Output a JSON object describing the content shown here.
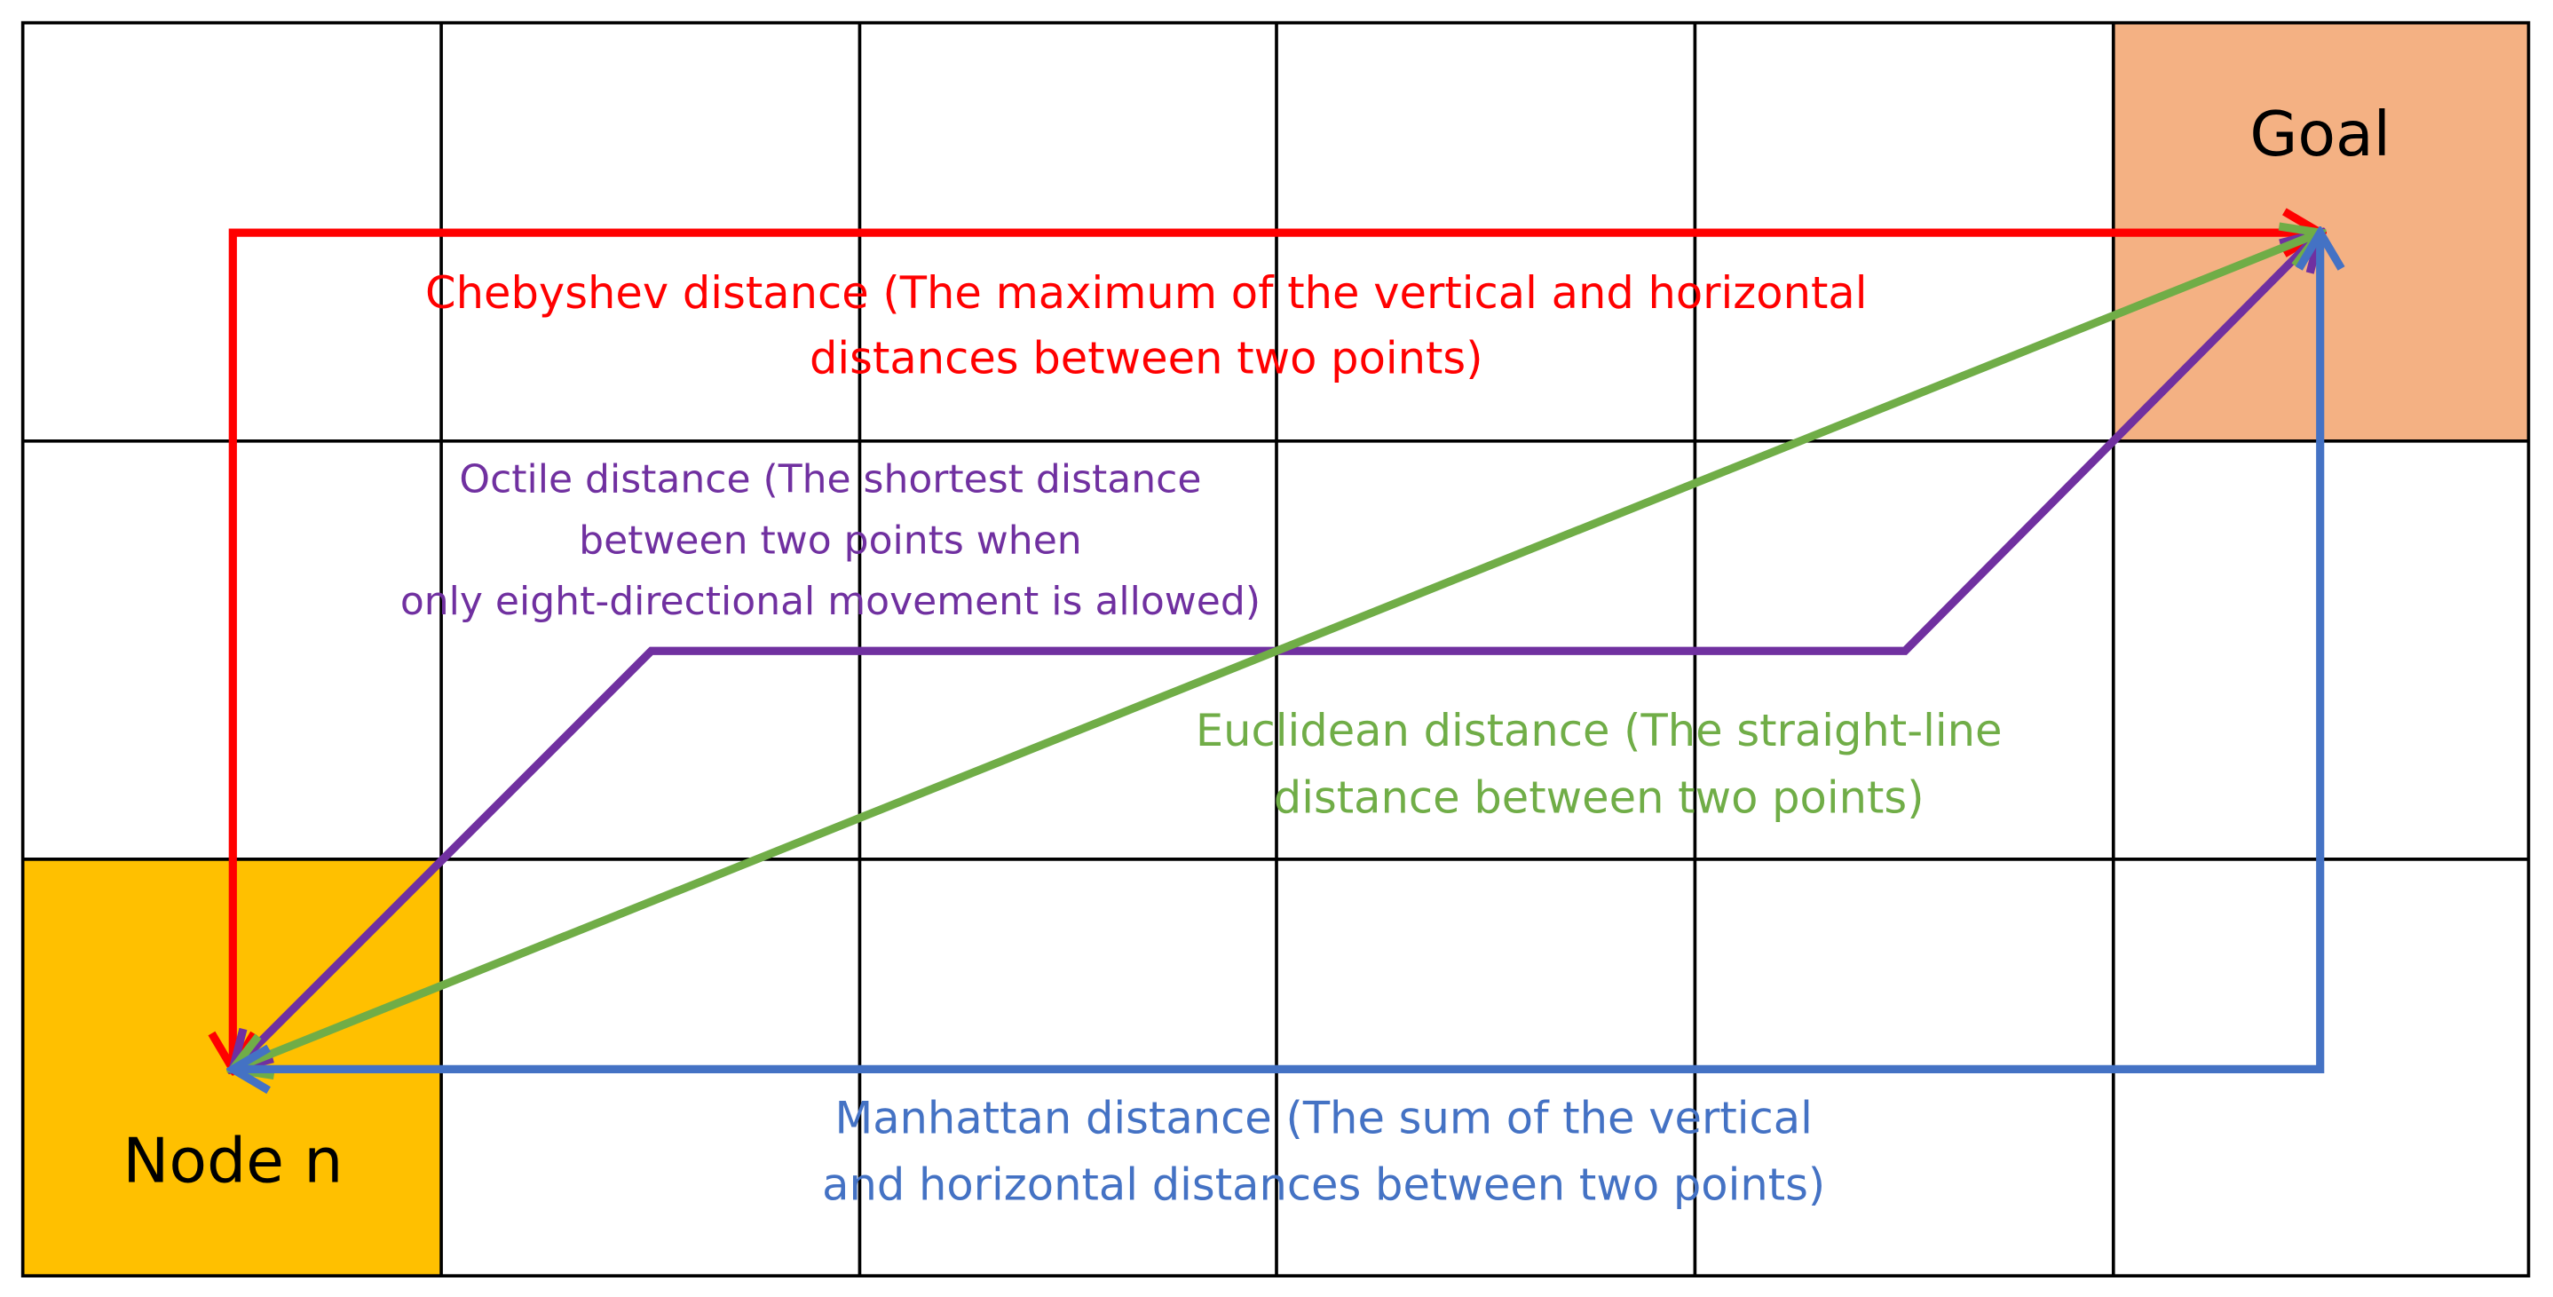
{
  "nodes": [
    {
      "label": "Goal"
    },
    {
      "label": "Node n"
    }
  ],
  "edges": [
    {
      "label": [
        "Chebyshev distance (The maximum of the vertical and horizontal",
        "distances between two points)"
      ]
    },
    {
      "label": [
        "Octile distance (The shortest distance",
        "between two points when",
        "only eight-directional movement is allowed)"
      ]
    },
    {
      "label": [
        "Euclidean distance (The straight-line",
        "distance between two points)"
      ]
    },
    {
      "label": [
        "Manhattan distance (The sum of the vertical",
        "and horizontal distances between two points)"
      ]
    }
  ]
}
